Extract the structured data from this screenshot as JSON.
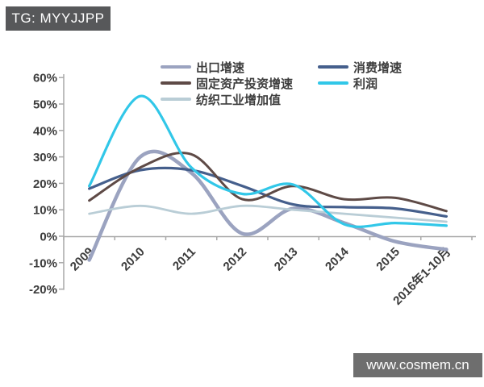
{
  "header": {
    "tag": "TG: MYYJJPP"
  },
  "footer": {
    "site": "www.cosmem.cn"
  },
  "chart_data": {
    "type": "line",
    "smoothed": true,
    "title": "",
    "xlabel": "",
    "ylabel": "",
    "categories": [
      "2009",
      "2010",
      "2011",
      "2012",
      "2013",
      "2014",
      "2015",
      "2016年1-10月"
    ],
    "series": [
      {
        "name": "出口增速",
        "slug": "export-growth",
        "color": "#9ba3c0",
        "stroke_width": 4.5,
        "values": [
          -9,
          30,
          24,
          1,
          10.5,
          5,
          -2,
          -5
        ]
      },
      {
        "name": "消费增速",
        "slug": "consumption-growth",
        "color": "#455f8c",
        "stroke_width": 3.2,
        "values": [
          18,
          25,
          25,
          19,
          12,
          11,
          10.5,
          7.5
        ]
      },
      {
        "name": "固定资产投资增速",
        "slug": "fixed-asset-investment-growth",
        "color": "#5e4a46",
        "stroke_width": 3,
        "values": [
          13.5,
          26,
          31,
          14,
          19,
          14,
          14.5,
          9.5
        ]
      },
      {
        "name": "利润",
        "slug": "profit",
        "color": "#31c7e8",
        "stroke_width": 3.2,
        "values": [
          19,
          53,
          26,
          16,
          19.5,
          4.5,
          5,
          4
        ]
      },
      {
        "name": "纺织工业增加值",
        "slug": "textile-industry-added-value",
        "color": "#b9cdd6",
        "stroke_width": 2.8,
        "values": [
          8.5,
          11.5,
          8.5,
          11.5,
          10,
          8.5,
          7,
          5.5
        ]
      }
    ],
    "y_axis": {
      "min": -20,
      "max": 60,
      "step": 10,
      "unit": "%",
      "tick_labels": [
        "60%",
        "50%",
        "40%",
        "30%",
        "20%",
        "10%",
        "0%",
        "-10%",
        "-20%"
      ]
    },
    "grid": false,
    "legend_position": "top",
    "legend_rows": [
      [
        0,
        1
      ],
      [
        2,
        3
      ],
      [
        4
      ]
    ],
    "draw_order": [
      0,
      1,
      2,
      4,
      3
    ]
  },
  "colors": {
    "tag_bg": "#57585a",
    "site_bg": "#6e6e6e",
    "axis": "#a8a8a8",
    "tick_label": "#3c3c3c"
  }
}
